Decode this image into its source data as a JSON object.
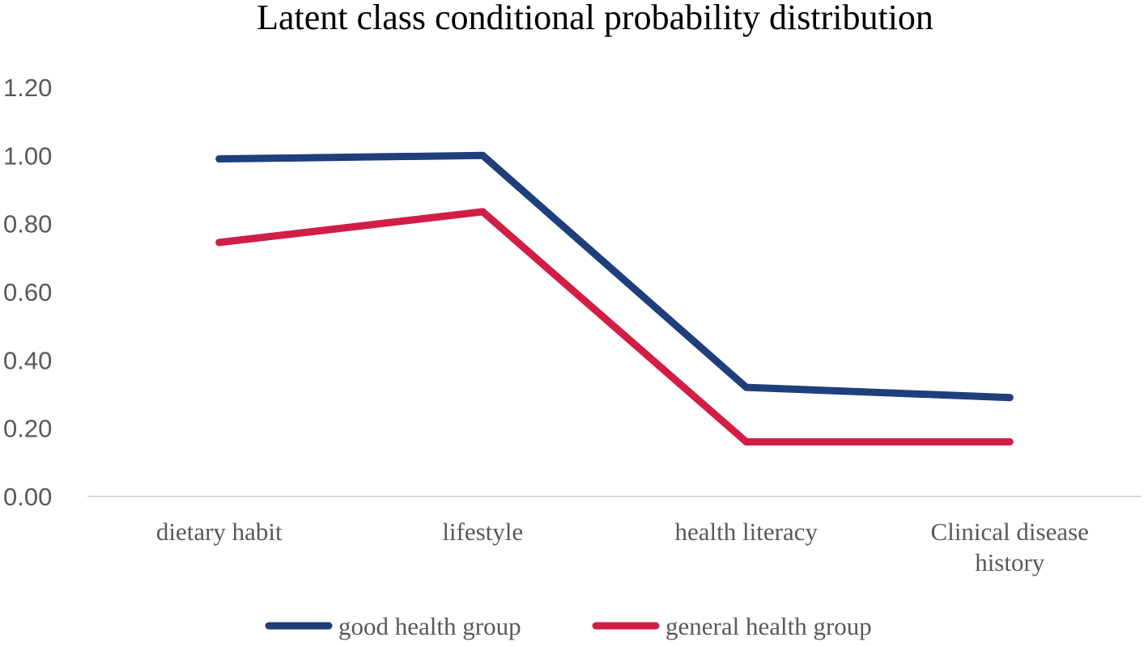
{
  "chart_data": {
    "type": "line",
    "title": "Latent class conditional probability distribution",
    "xlabel": "",
    "ylabel": "",
    "ylim": [
      0,
      1.2
    ],
    "yticks": [
      "0.00",
      "0.20",
      "0.40",
      "0.60",
      "0.80",
      "1.00",
      "1.20"
    ],
    "grid": false,
    "categories": [
      [
        "dietary habit"
      ],
      [
        "lifestyle"
      ],
      [
        "health literacy"
      ],
      [
        "Clinical disease",
        "history"
      ]
    ],
    "category_names": [
      "dietary habit",
      "lifestyle",
      "health literacy",
      "Clinical disease history"
    ],
    "series": [
      {
        "name": "good health group",
        "color": "#1F3E7C",
        "values": [
          0.99,
          1.0,
          0.32,
          0.29
        ]
      },
      {
        "name": "general health group",
        "color": "#D01E47",
        "values": [
          0.745,
          0.835,
          0.16,
          0.16
        ]
      }
    ],
    "legend_position": "bottom"
  }
}
